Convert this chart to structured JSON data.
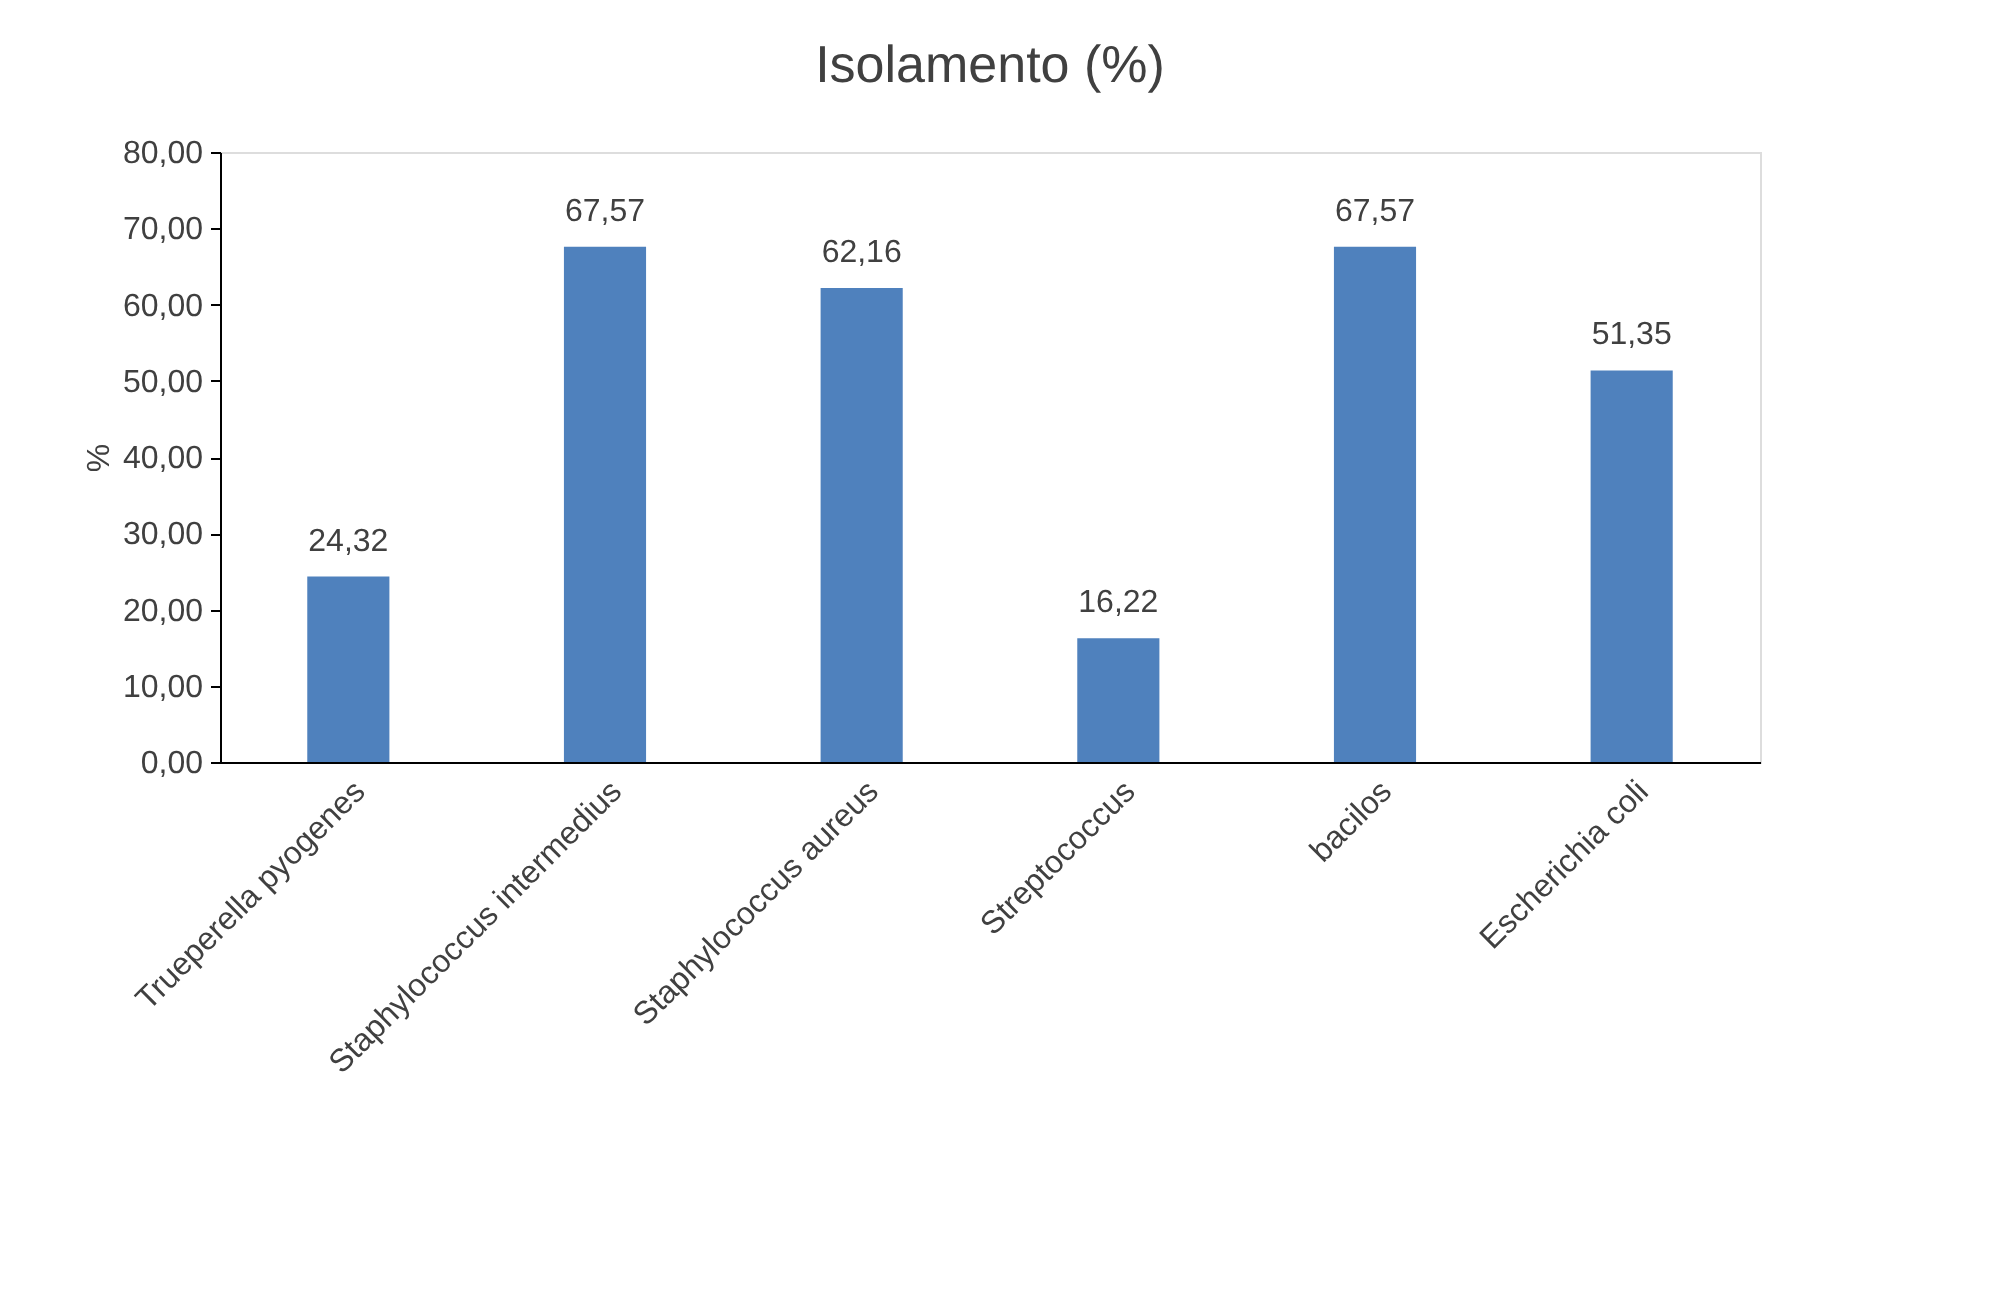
{
  "chart_data": {
    "type": "bar",
    "title": "Isolamento (%)",
    "ylabel": "%",
    "categories": [
      "Trueperella pyogenes",
      "Staphylococcus intermedius",
      "Staphylococcus aureus",
      "Streptococcus",
      "bacilos",
      "Escherichia coli"
    ],
    "values": [
      24.32,
      67.57,
      62.16,
      16.22,
      67.57,
      51.35
    ],
    "value_labels": [
      "24,32",
      "67,57",
      "62,16",
      "16,22",
      "67,57",
      "51,35"
    ],
    "color": "#4f81bd",
    "ylim": [
      0,
      80
    ],
    "yticks": [
      {
        "value": 0,
        "label": "0,00"
      },
      {
        "value": 10,
        "label": "10,00"
      },
      {
        "value": 20,
        "label": "20,00"
      },
      {
        "value": 30,
        "label": "30,00"
      },
      {
        "value": 40,
        "label": "40,00"
      },
      {
        "value": 50,
        "label": "50,00"
      },
      {
        "value": 60,
        "label": "60,00"
      },
      {
        "value": 70,
        "label": "70,00"
      },
      {
        "value": 80,
        "label": "80,00"
      }
    ],
    "grid": false
  }
}
